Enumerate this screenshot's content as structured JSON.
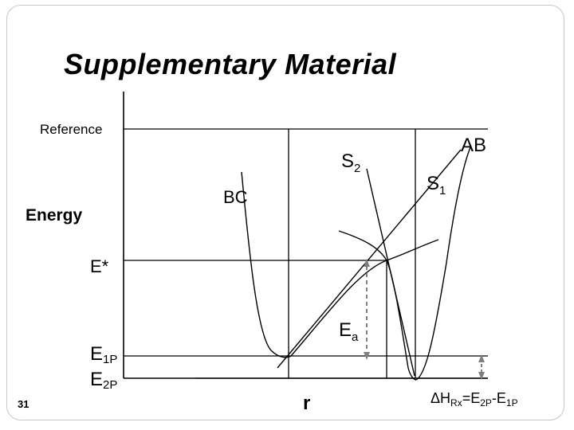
{
  "slide": {
    "title": "Supplementary Material",
    "number": "31"
  },
  "diagram": {
    "y_axis_label": "Energy",
    "x_axis_label": "r",
    "reference_label": "Reference",
    "e_star_label": "E*",
    "e1p": {
      "main": "E",
      "sub": "1P"
    },
    "e2p": {
      "main": "E",
      "sub": "2P"
    },
    "s2": {
      "main": "S",
      "sub": "2"
    },
    "s1": {
      "main": "S",
      "sub": "1"
    },
    "bc_label": "BC",
    "ab_label": "AB",
    "ea": {
      "main": "E",
      "sub": "a"
    },
    "delta_h": {
      "delta": "Δ",
      "h": "H",
      "h_sub": "Rx",
      "eq": "=E",
      "e2_sub": "2P",
      "minus": "-E",
      "e1_sub": "1P"
    },
    "colors": {
      "lines": "#000000",
      "arrows": "#808080"
    }
  }
}
